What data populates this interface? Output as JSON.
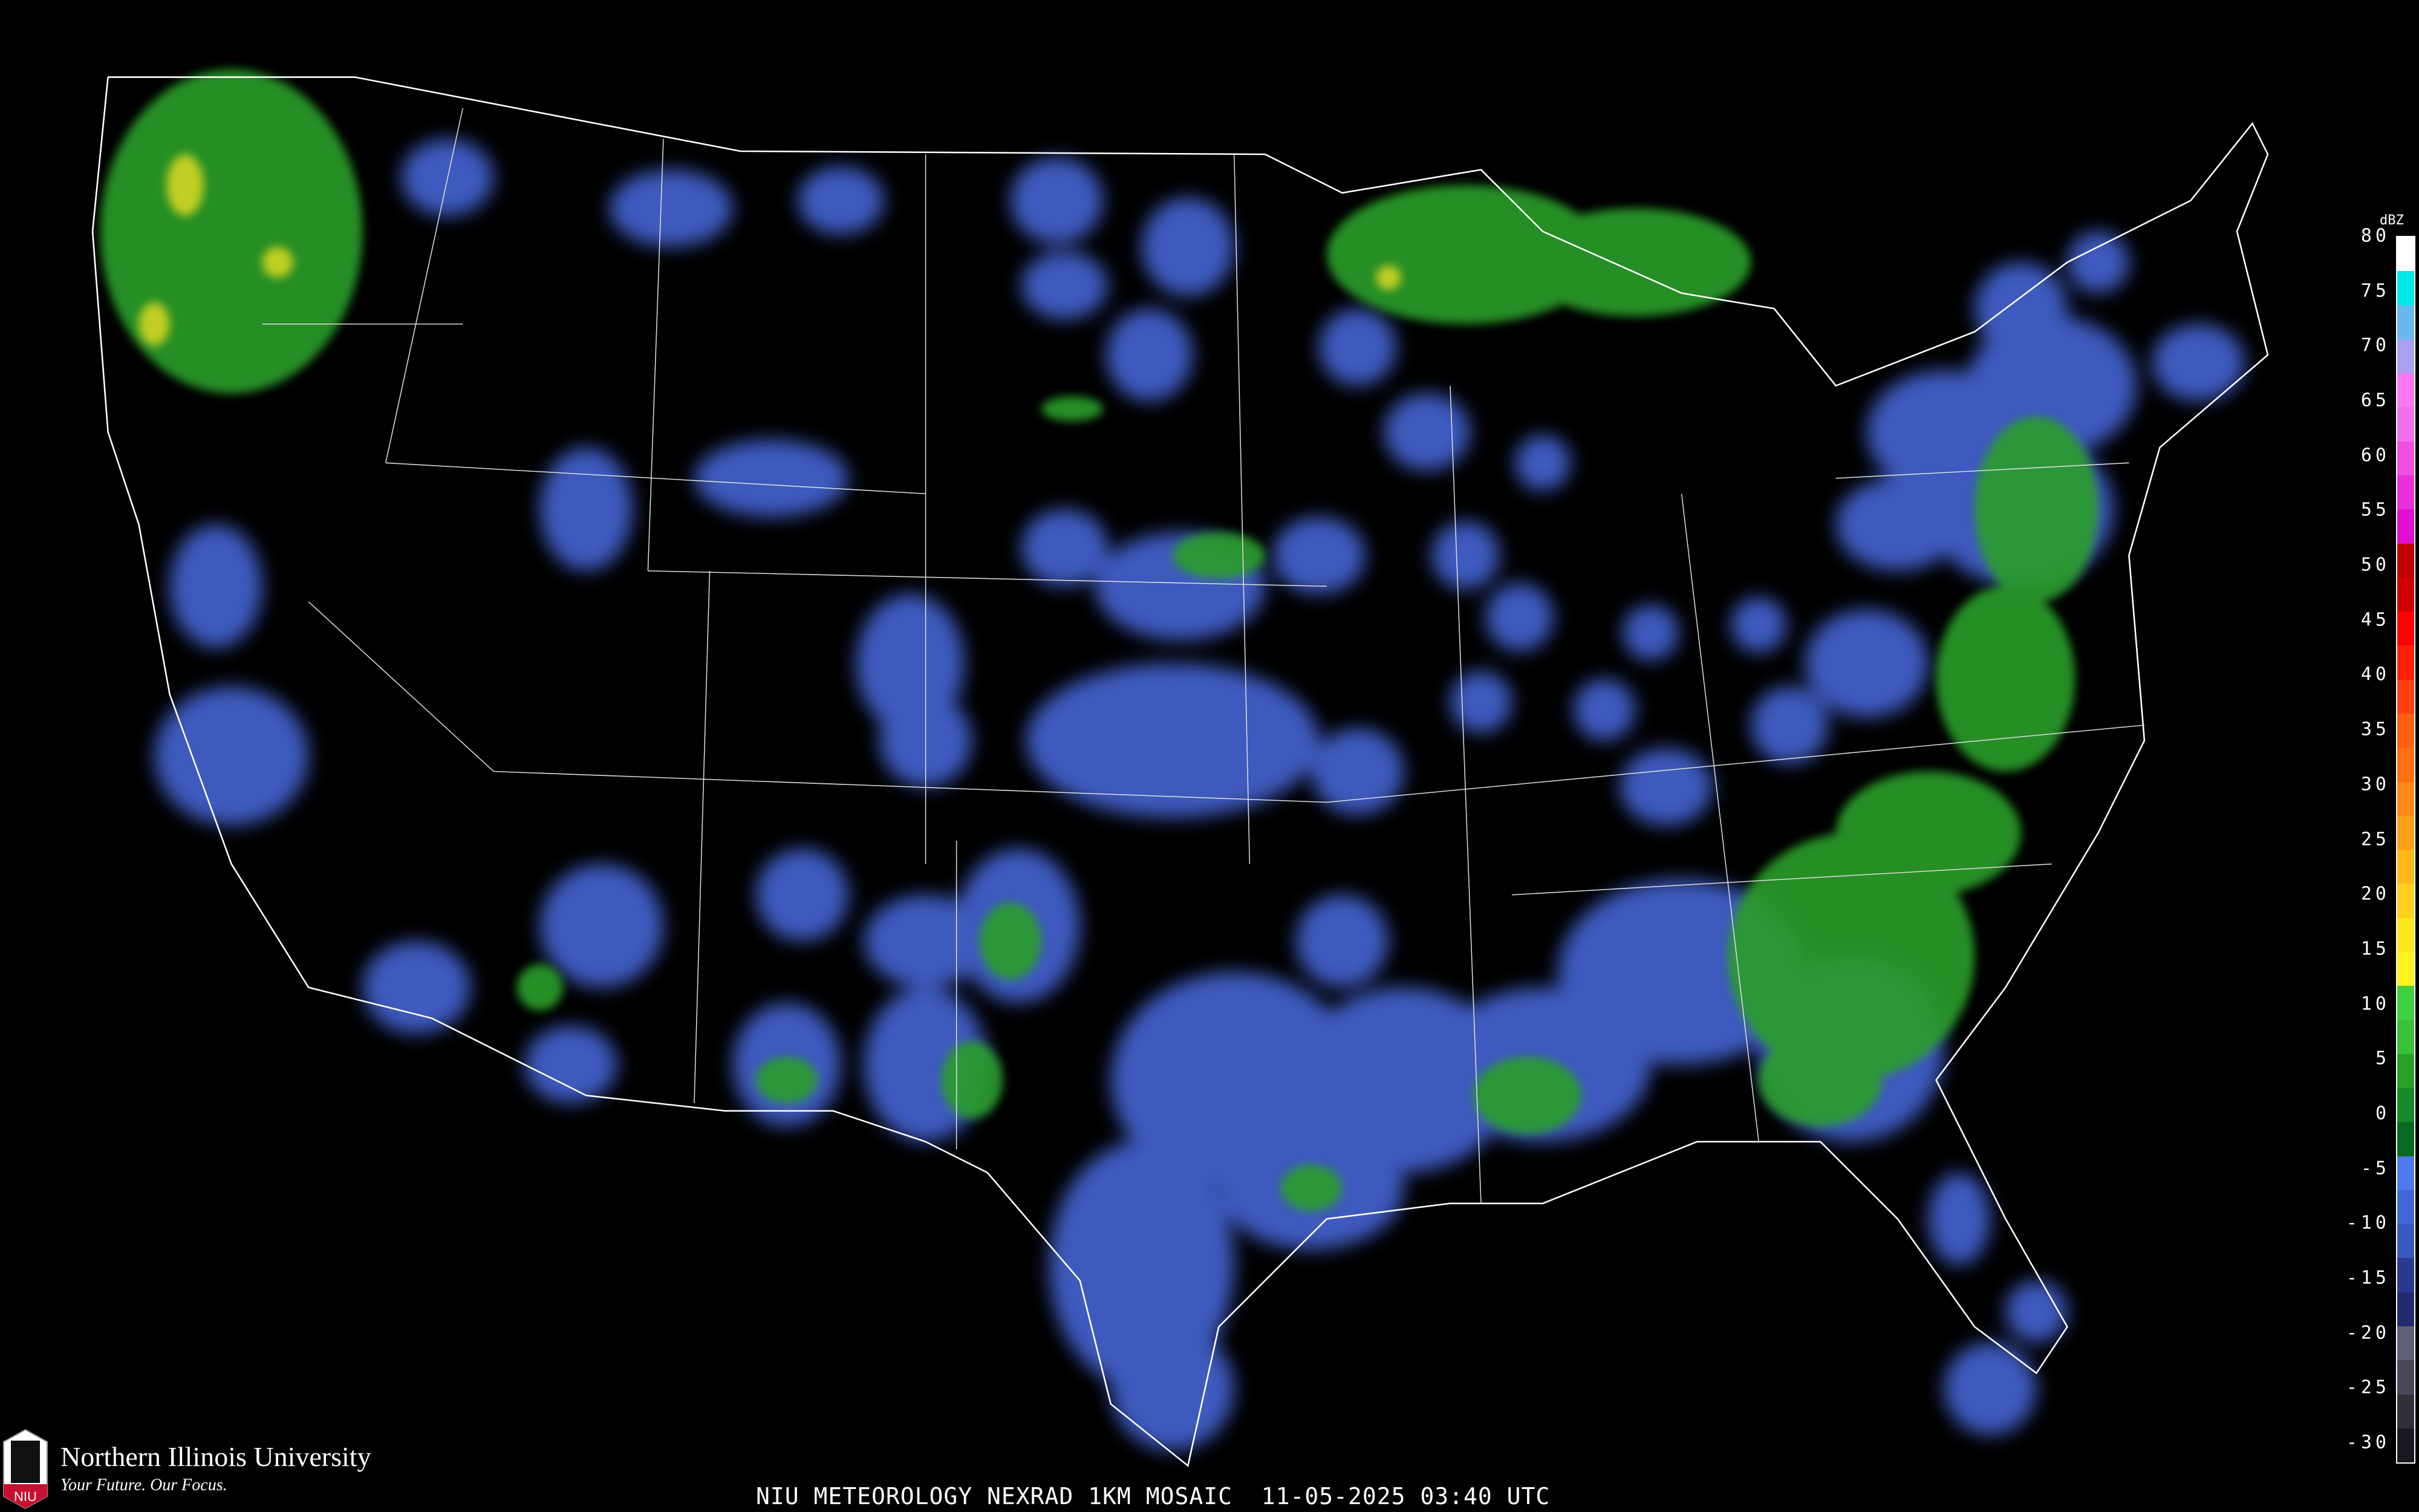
{
  "caption": "NIU METEOROLOGY NEXRAD 1KM MOSAIC  11-05-2025 03:40 UTC",
  "branding": {
    "university": "Northern Illinois University",
    "tagline": "Your Future. Our Focus.",
    "logo_text": "NIU",
    "logo_color": "#c8102e"
  },
  "legend": {
    "unit": "dBZ",
    "ticks": [
      "80",
      "75",
      "70",
      "65",
      "60",
      "55",
      "50",
      "45",
      "40",
      "35",
      "30",
      "25",
      "20",
      "15",
      "10",
      "5",
      "0",
      "-5",
      "-10",
      "-15",
      "-20",
      "-25",
      "-30"
    ],
    "colors": [
      "#ffffff",
      "#00e8e8",
      "#6ab8f0",
      "#a8a0f0",
      "#ff78f0",
      "#f070f0",
      "#f050e0",
      "#e830d8",
      "#e010d0",
      "#c00000",
      "#d00000",
      "#ff0000",
      "#ff2000",
      "#ff4010",
      "#ff6010",
      "#ff7010",
      "#ff8818",
      "#ffa018",
      "#ffb818",
      "#ffd020",
      "#ffe820",
      "#fff020",
      "#40d040",
      "#38c038",
      "#28a028",
      "#148a28",
      "#0a6a20",
      "#5078f0",
      "#4068d8",
      "#3858c0",
      "#2a3a90",
      "#232a70",
      "#606078",
      "#484858",
      "#303038",
      "#181820"
    ]
  },
  "echo_colors": {
    "light": "#4a6ae0",
    "moderate": "#2a9e2a",
    "heavy": "#e8e020"
  }
}
